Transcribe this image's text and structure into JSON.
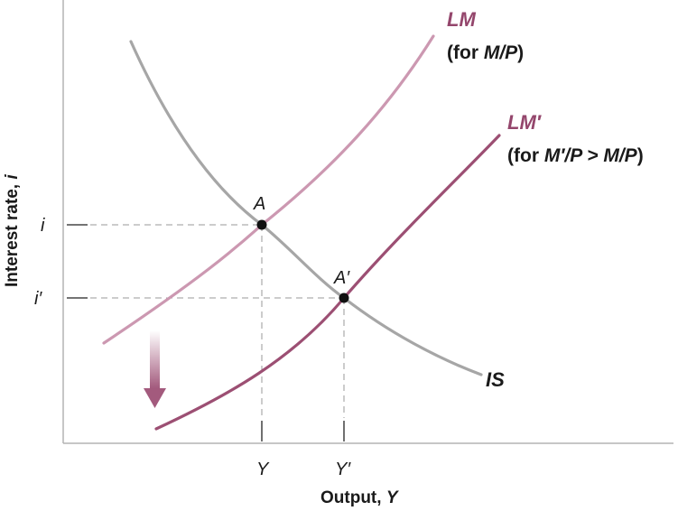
{
  "diagram": {
    "y_axis_label": "Interest rate, ",
    "y_axis_var": "i",
    "x_axis_label": "Output, ",
    "x_axis_var": "Y",
    "tick_i": "i",
    "tick_i_prime": "i′",
    "tick_Y": "Y",
    "tick_Y_prime": "Y′",
    "point_A": "A",
    "point_A_prime": "A′",
    "curve_IS": "IS",
    "curve_LM": "LM",
    "curve_LM_note_pre": "(for ",
    "curve_LM_note_var": "M/P",
    "curve_LM_note_post": ")",
    "curve_LM_prime": "LM′",
    "curve_LM_prime_note_pre": "(for ",
    "curve_LM_prime_note_var": "M′/P > M/P",
    "curve_LM_prime_note_post": ")",
    "colors": {
      "is_curve": "#a6a6a6",
      "lm_curve": "#cc98b1",
      "lm_prime_curve": "#9c4f73",
      "label_accent": "#94466c",
      "point": "#111111",
      "arrow": "#a35a7d"
    }
  }
}
